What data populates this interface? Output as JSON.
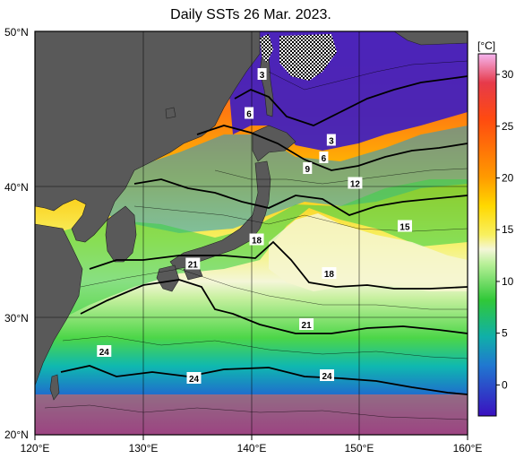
{
  "title": "Daily SSTs 26 Mar. 2023.",
  "colorbar": {
    "unit": "[°C]",
    "ticks": [
      "30",
      "25",
      "20",
      "15",
      "10",
      "5",
      "0"
    ],
    "range": [
      -3,
      32
    ]
  },
  "axes": {
    "lat_labels": [
      "50°N",
      "40°N",
      "30°N",
      "20°N"
    ],
    "lon_labels": [
      "120°E",
      "130°E",
      "140°E",
      "150°E",
      "160°E"
    ]
  },
  "isotherm_labels": [
    {
      "text": "3",
      "lon": 141.0,
      "lat": 46.8
    },
    {
      "text": "6",
      "lon": 139.8,
      "lat": 43.9
    },
    {
      "text": "3",
      "lon": 147.4,
      "lat": 41.9
    },
    {
      "text": "6",
      "lon": 146.7,
      "lat": 40.6
    },
    {
      "text": "9",
      "lon": 145.2,
      "lat": 39.8
    },
    {
      "text": "12",
      "lon": 149.6,
      "lat": 38.7
    },
    {
      "text": "15",
      "lon": 154.2,
      "lat": 35.5
    },
    {
      "text": "18",
      "lon": 140.5,
      "lat": 34.5
    },
    {
      "text": "21",
      "lon": 134.6,
      "lat": 32.7
    },
    {
      "text": "18",
      "lon": 147.2,
      "lat": 32.0
    },
    {
      "text": "21",
      "lon": 145.1,
      "lat": 28.2
    },
    {
      "text": "24",
      "lon": 126.4,
      "lat": 26.2
    },
    {
      "text": "24",
      "lon": 134.7,
      "lat": 24.2
    },
    {
      "text": "24",
      "lon": 147.0,
      "lat": 24.4
    }
  ],
  "colors": {
    "land": "#595959",
    "sea_ice": "#ffffff",
    "frame": "#000000"
  }
}
